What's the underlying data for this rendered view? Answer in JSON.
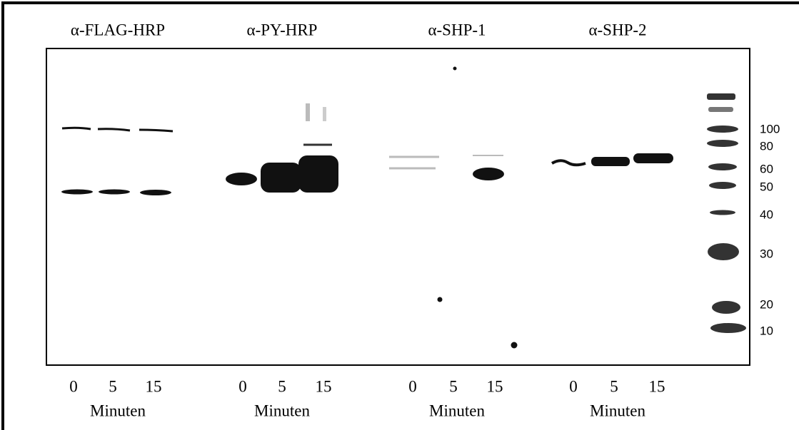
{
  "panels": [
    {
      "title": "α-FLAG-HRP",
      "lanes": [
        "0",
        "5",
        "15"
      ],
      "unit": "Minuten"
    },
    {
      "title": "α-PY-HRP",
      "lanes": [
        "0",
        "5",
        "15"
      ],
      "unit": "Minuten"
    },
    {
      "title": "α-SHP-1",
      "lanes": [
        "0",
        "5",
        "15"
      ],
      "unit": "Minuten"
    },
    {
      "title": "α-SHP-2",
      "lanes": [
        "0",
        "5",
        "15"
      ],
      "unit": "Minuten"
    }
  ],
  "markers": [
    100,
    80,
    60,
    50,
    40,
    30,
    20,
    10
  ]
}
